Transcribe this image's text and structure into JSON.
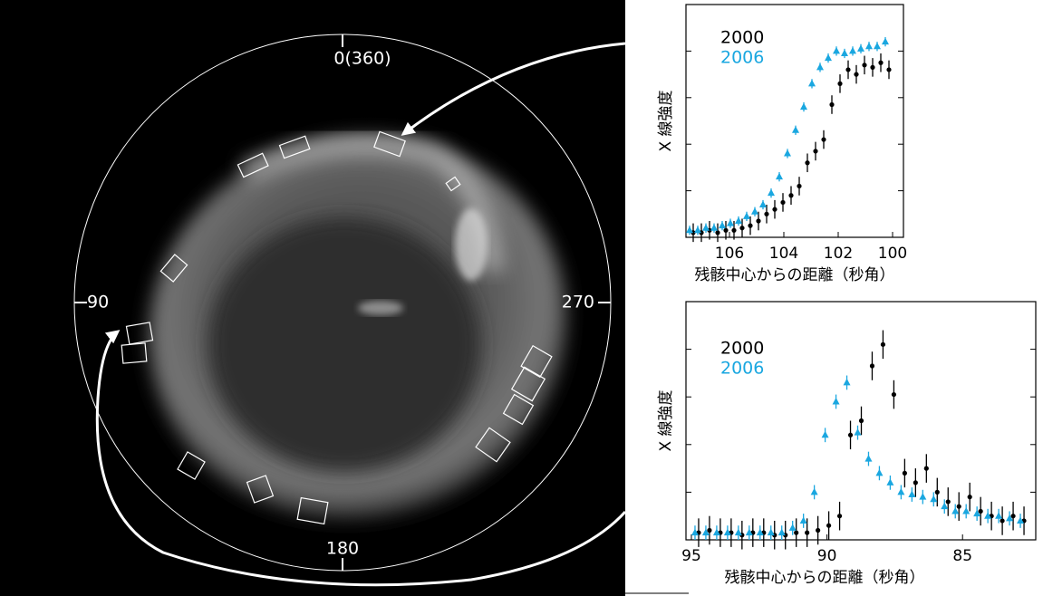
{
  "image": {
    "angle_labels": [
      "0(360)",
      "90",
      "180",
      "270"
    ]
  },
  "chart_data": [
    {
      "type": "errorbar-scatter",
      "xlabel": "残骸中心からの距離（秒角）",
      "ylabel": "X 線強度",
      "xlim": [
        107.6,
        99.6
      ],
      "xticks": [
        106,
        104,
        102,
        100
      ],
      "ylim": [
        0,
        100
      ],
      "yticks": [
        20,
        40,
        60,
        80
      ],
      "x": [
        107.4,
        107.1,
        106.8,
        106.5,
        106.2,
        105.9,
        105.6,
        105.3,
        105.0,
        104.7,
        104.4,
        104.1,
        103.8,
        103.5,
        103.2,
        102.9,
        102.6,
        102.3,
        102.0,
        101.7,
        101.4,
        101.1,
        100.8,
        100.5,
        100.2
      ],
      "series": [
        {
          "name": "2000",
          "color": "#000000",
          "marker": "circle",
          "error": 4,
          "values": [
            2,
            2,
            3,
            2,
            3,
            3,
            4,
            5,
            7,
            10,
            12,
            15,
            18,
            22,
            32,
            37,
            42,
            57,
            66,
            72,
            70,
            74,
            73,
            75,
            72
          ]
        },
        {
          "name": "2006",
          "color": "#1aa7e0",
          "marker": "triangle",
          "error": 2,
          "values": [
            3,
            3,
            4,
            4,
            5,
            6,
            7,
            9,
            11,
            14,
            19,
            26,
            36,
            46,
            56,
            66,
            73,
            77,
            80,
            79,
            80,
            81,
            82,
            82,
            84
          ]
        }
      ]
    },
    {
      "type": "errorbar-scatter",
      "xlabel": "残骸中心からの距離（秒角）",
      "ylabel": "X 線強度",
      "xlim": [
        95.2,
        82.3
      ],
      "xticks": [
        95,
        90,
        85
      ],
      "ylim": [
        0,
        100
      ],
      "yticks": [
        20,
        40,
        60,
        80
      ],
      "x": [
        94.8,
        94.4,
        94.0,
        93.6,
        93.2,
        92.8,
        92.4,
        92.0,
        91.6,
        91.2,
        90.8,
        90.4,
        90.0,
        89.6,
        89.2,
        88.8,
        88.4,
        88.0,
        87.6,
        87.2,
        86.8,
        86.4,
        86.0,
        85.6,
        85.2,
        84.8,
        84.4,
        84.0,
        83.6,
        83.2,
        82.8
      ],
      "series": [
        {
          "name": "2000",
          "color": "#000000",
          "marker": "circle",
          "error": 6,
          "values": [
            3,
            4,
            3,
            3,
            2,
            3,
            3,
            2,
            2,
            3,
            3,
            4,
            6,
            10,
            44,
            50,
            73,
            82,
            61,
            28,
            24,
            30,
            20,
            16,
            14,
            18,
            12,
            10,
            8,
            10,
            8
          ]
        },
        {
          "name": "2006",
          "color": "#1aa7e0",
          "marker": "triangle",
          "error": 3,
          "values": [
            3,
            3,
            3,
            3,
            3,
            3,
            3,
            3,
            3,
            5,
            8,
            20,
            44,
            58,
            66,
            45,
            34,
            28,
            24,
            20,
            19,
            18,
            17,
            14,
            12,
            12,
            11,
            10,
            10,
            9,
            8
          ]
        }
      ]
    }
  ]
}
